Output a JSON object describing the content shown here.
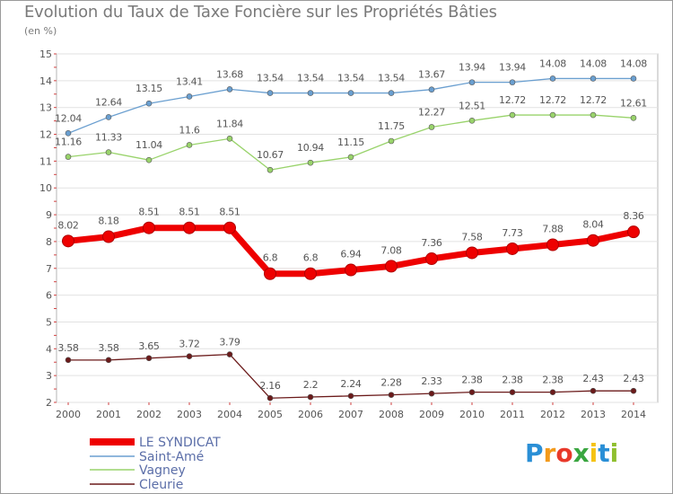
{
  "chart_data": {
    "type": "line",
    "title": "Evolution du Taux de Taxe Foncière sur les Propriétés Bâties",
    "unit_label": "(en %)",
    "xlabel": "",
    "ylabel": "",
    "ylim": [
      2,
      15
    ],
    "yticks": [
      "2",
      "3",
      "4",
      "5",
      "6",
      "7",
      "8",
      "9",
      "10",
      "11",
      "12",
      "13",
      "14",
      "15"
    ],
    "categories": [
      "2000",
      "2001",
      "2002",
      "2003",
      "2004",
      "2005",
      "2006",
      "2007",
      "2008",
      "2009",
      "2010",
      "2011",
      "2012",
      "2013",
      "2014"
    ],
    "series": [
      {
        "name": "Saint-Amé",
        "color": "#6a9fd0",
        "values": [
          12.04,
          12.64,
          13.15,
          13.41,
          13.68,
          13.54,
          13.54,
          13.54,
          13.54,
          13.67,
          13.94,
          13.94,
          14.08,
          14.08,
          14.08
        ],
        "labels": [
          "12.04",
          "12.64",
          "13.15",
          "13.41",
          "13.68",
          "13.54",
          "13.54",
          "13.54",
          "13.54",
          "13.67",
          "13.94",
          "13.94",
          "14.08",
          "14.08",
          "14.08"
        ]
      },
      {
        "name": "Vagney",
        "color": "#99d36b",
        "values": [
          11.16,
          11.33,
          11.04,
          11.6,
          11.84,
          10.67,
          10.94,
          11.15,
          11.75,
          12.27,
          12.51,
          12.72,
          12.72,
          12.72,
          12.61
        ],
        "labels": [
          "11.16",
          "11.33",
          "11.04",
          "11.6",
          "11.84",
          "10.67",
          "10.94",
          "11.15",
          "11.75",
          "12.27",
          "12.51",
          "12.72",
          "12.72",
          "12.72",
          "12.61"
        ]
      },
      {
        "name": "LE SYNDICAT",
        "color": "#ee0000",
        "values": [
          8.02,
          8.18,
          8.51,
          8.51,
          8.51,
          6.8,
          6.8,
          6.94,
          7.08,
          7.36,
          7.58,
          7.73,
          7.88,
          8.04,
          8.36
        ],
        "labels": [
          "8.02",
          "8.18",
          "8.51",
          "8.51",
          "8.51",
          "6.8",
          "6.8",
          "6.94",
          "7.08",
          "7.36",
          "7.58",
          "7.73",
          "7.88",
          "8.04",
          "8.36"
        ]
      },
      {
        "name": "Cleurie",
        "color": "#6b1a1a",
        "values": [
          3.58,
          3.58,
          3.65,
          3.72,
          3.79,
          2.16,
          2.2,
          2.24,
          2.28,
          2.33,
          2.38,
          2.38,
          2.38,
          2.43,
          2.43
        ],
        "labels": [
          "3.58",
          "3.58",
          "3.65",
          "3.72",
          "3.79",
          "2.16",
          "2.2",
          "2.24",
          "2.28",
          "2.33",
          "2.38",
          "2.38",
          "2.38",
          "2.43",
          "2.43"
        ]
      }
    ],
    "legend": [
      "LE SYNDICAT",
      "Saint-Amé",
      "Vagney",
      "Cleurie"
    ],
    "legend_position": "bottom-left"
  },
  "logo": {
    "letters": [
      "P",
      "r",
      "o",
      "x",
      "i",
      "t",
      "i"
    ],
    "colors": [
      "#2a8fd6",
      "#f39a1b",
      "#e8392a",
      "#3aa640",
      "#f5c314",
      "#2a8fd6",
      "#8fbf2f"
    ]
  }
}
